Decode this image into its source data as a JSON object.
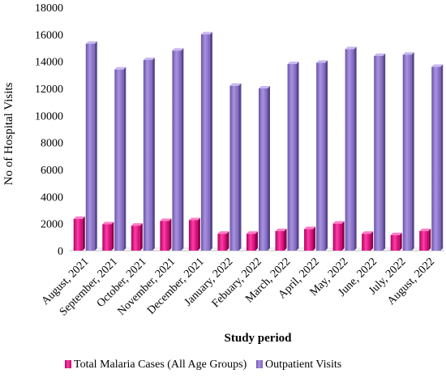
{
  "chart_data": {
    "type": "bar",
    "title": "",
    "xlabel": "Study period",
    "ylabel": "No of Hospital Visits",
    "ylim": [
      0,
      18000
    ],
    "yticks": [
      0,
      2000,
      4000,
      6000,
      8000,
      10000,
      12000,
      14000,
      16000,
      18000
    ],
    "grid": false,
    "legend_position": "bottom",
    "categories": [
      "August, 2021",
      "September, 2021",
      "October, 2021",
      "November, 2021",
      "December, 2021",
      "January, 2022",
      "Febuary, 2022",
      "March, 2022",
      "April, 2022",
      "May, 2022",
      "June, 2022",
      "July, 2022",
      "August, 2022"
    ],
    "series": [
      {
        "name": "Total Malaria Cases (All Age Groups)",
        "color": "#e6007e",
        "values": [
          2350,
          1950,
          1850,
          2200,
          2250,
          1250,
          1250,
          1450,
          1600,
          2000,
          1250,
          1150,
          1450
        ]
      },
      {
        "name": "Outpatient Visits",
        "color": "#8a73c4",
        "values": [
          15300,
          13400,
          14100,
          14800,
          16000,
          12200,
          12000,
          13800,
          13900,
          14900,
          14400,
          14500,
          13600
        ]
      }
    ]
  }
}
